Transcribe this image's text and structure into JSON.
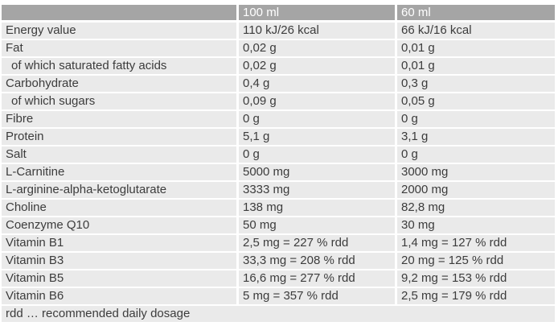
{
  "table": {
    "columns": {
      "label": "",
      "c100": "100 ml",
      "c60": "60 ml"
    },
    "rows": [
      {
        "label": "Energy value",
        "v100": "110 kJ/26 kcal",
        "v60": "66 kJ/16 kcal",
        "indent": false
      },
      {
        "label": "Fat",
        "v100": "0,02 g",
        "v60": "0,01 g",
        "indent": false
      },
      {
        "label": "of which saturated fatty acids",
        "v100": "0,02 g",
        "v60": "0,01 g",
        "indent": true
      },
      {
        "label": "Carbohydrate",
        "v100": "0,4 g",
        "v60": "0,3 g",
        "indent": false
      },
      {
        "label": "of which sugars",
        "v100": "0,09 g",
        "v60": "0,05 g",
        "indent": true
      },
      {
        "label": "Fibre",
        "v100": "0 g",
        "v60": "0 g",
        "indent": false
      },
      {
        "label": "Protein",
        "v100": "5,1 g",
        "v60": "3,1 g",
        "indent": false
      },
      {
        "label": "Salt",
        "v100": "0 g",
        "v60": "0 g",
        "indent": false
      },
      {
        "label": "L-Carnitine",
        "v100": "5000 mg",
        "v60": "3000 mg",
        "indent": false
      },
      {
        "label": "L-arginine-alpha-ketoglutarate",
        "v100": "3333 mg",
        "v60": "2000 mg",
        "indent": false
      },
      {
        "label": "Choline",
        "v100": "138 mg",
        "v60": "82,8 mg",
        "indent": false
      },
      {
        "label": "Coenzyme Q10",
        "v100": "50 mg",
        "v60": "30 mg",
        "indent": false
      },
      {
        "label": "Vitamin B1",
        "v100": "2,5 mg = 227 % rdd",
        "v60": "1,4 mg = 127 % rdd",
        "indent": false
      },
      {
        "label": "Vitamin B3",
        "v100": "33,3 mg = 208 % rdd",
        "v60": "20 mg = 125 % rdd",
        "indent": false
      },
      {
        "label": "Vitamin B5",
        "v100": "16,6 mg = 277 % rdd",
        "v60": "9,2 mg = 153 % rdd",
        "indent": false
      },
      {
        "label": "Vitamin B6",
        "v100": "5 mg = 357 % rdd",
        "v60": "2,5 mg = 179 % rdd",
        "indent": false
      }
    ],
    "footer": "rdd … recommended daily dosage",
    "colors": {
      "header_bg": "#a5a5a5",
      "header_text": "#ffffff",
      "row_bg": "#eaeaea",
      "separator": "#ffffff",
      "text": "#3c3c3c"
    }
  }
}
